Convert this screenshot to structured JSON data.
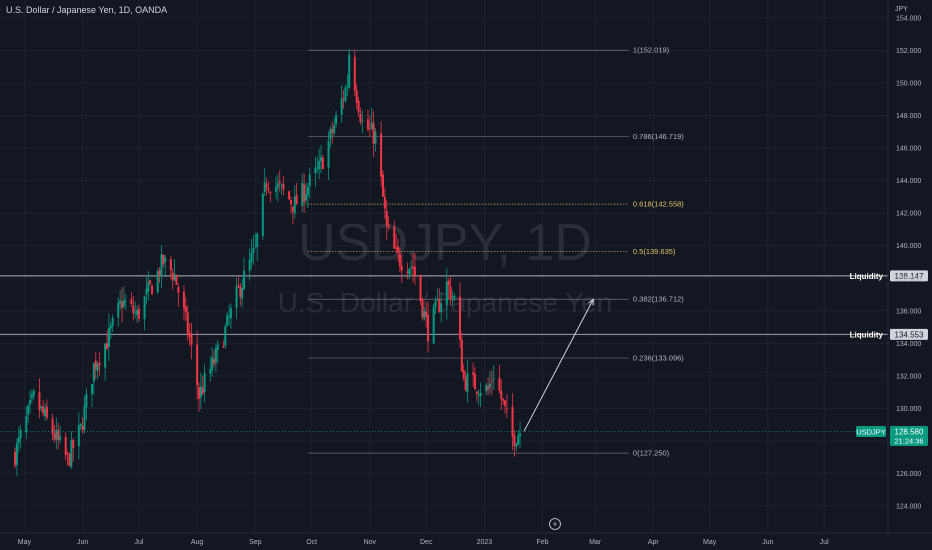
{
  "symbol_title": "U.S. Dollar / Japanese Yen, 1D, OANDA",
  "watermark": {
    "symbol": "USDJPY, 1D",
    "description": "U.S. Dollar / Japanese Yen"
  },
  "currency_label": "JPY",
  "price_axis": {
    "min": 124,
    "max": 154,
    "ticks": [
      "124.000",
      "126.000",
      "128.000",
      "130.000",
      "132.000",
      "134.000",
      "136.000",
      "138.000",
      "140.000",
      "142.000",
      "144.000",
      "146.000",
      "148.000",
      "150.000",
      "152.000",
      "154.000"
    ]
  },
  "time_axis": {
    "labels": [
      "May",
      "Jun",
      "Jul",
      "Aug",
      "Sep",
      "Oct",
      "Nov",
      "Dec",
      "2023",
      "Feb",
      "Mar",
      "Apr",
      "May",
      "Jun",
      "Jul"
    ]
  },
  "fibonacci": [
    {
      "label": "1(152.019)",
      "price": 152.019,
      "color": "#787b86"
    },
    {
      "label": "0.786(146.719)",
      "price": 146.719,
      "color": "#787b86"
    },
    {
      "label": "0.618(142.558)",
      "price": 142.558,
      "color": "#e6c36b"
    },
    {
      "label": "0.5(139.635)",
      "price": 139.635,
      "color": "#e6c36b"
    },
    {
      "label": "0.382(136.712)",
      "price": 136.712,
      "color": "#787b86"
    },
    {
      "label": "0.236(133.096)",
      "price": 133.096,
      "color": "#787b86"
    },
    {
      "label": "0(127.250)",
      "price": 127.25,
      "color": "#787b86"
    }
  ],
  "liquidity_lines": [
    {
      "label": "Liquidity",
      "price_label": "138.147",
      "price": 138.147
    },
    {
      "label": "Liquidity",
      "price_label": "134.553",
      "price": 134.553
    }
  ],
  "last_price": {
    "symbol": "USDJPY",
    "price_label": "128.580",
    "countdown": "21:24:36",
    "price": 128.58,
    "color": "#089981"
  },
  "colors": {
    "up": "#089981",
    "down": "#f23645",
    "background": "#131722"
  },
  "chart_data": {
    "type": "candlestick",
    "title": "U.S. Dollar / Japanese Yen, 1D, OANDA",
    "ylabel": "JPY",
    "ylim": [
      124,
      154
    ],
    "path_close": [
      [
        "2022-04-26",
        127.2
      ],
      [
        "2022-05-06",
        130.6
      ],
      [
        "2022-05-13",
        129.2
      ],
      [
        "2022-05-24",
        126.8
      ],
      [
        "2022-05-31",
        128.7
      ],
      [
        "2022-06-07",
        132.6
      ],
      [
        "2022-06-15",
        134.4
      ],
      [
        "2022-06-22",
        136.6
      ],
      [
        "2022-06-30",
        135.7
      ],
      [
        "2022-07-14",
        139.0
      ],
      [
        "2022-07-20",
        138.2
      ],
      [
        "2022-07-28",
        134.3
      ],
      [
        "2022-08-02",
        130.8
      ],
      [
        "2022-08-12",
        133.4
      ],
      [
        "2022-08-23",
        137.2
      ],
      [
        "2022-09-01",
        139.7
      ],
      [
        "2022-09-07",
        144.0
      ],
      [
        "2022-09-14",
        143.5
      ],
      [
        "2022-09-22",
        142.5
      ],
      [
        "2022-10-05",
        144.7
      ],
      [
        "2022-10-12",
        147.0
      ],
      [
        "2022-10-20",
        150.0
      ],
      [
        "2022-10-21",
        151.9
      ],
      [
        "2022-10-28",
        147.5
      ],
      [
        "2022-11-04",
        146.7
      ],
      [
        "2022-11-10",
        141.0
      ],
      [
        "2022-11-15",
        139.3
      ],
      [
        "2022-11-24",
        138.7
      ],
      [
        "2022-12-02",
        134.8
      ],
      [
        "2022-12-12",
        137.6
      ],
      [
        "2022-12-16",
        136.7
      ],
      [
        "2022-12-21",
        131.8
      ],
      [
        "2023-01-03",
        131.1
      ],
      [
        "2023-01-06",
        132.2
      ],
      [
        "2023-01-16",
        128.2
      ],
      [
        "2023-01-20",
        128.6
      ]
    ],
    "annotations": [
      {
        "type": "arrow",
        "from": [
          "2023-01-20",
          128.6
        ],
        "to": [
          "2023-02-28",
          136.7
        ]
      }
    ]
  }
}
